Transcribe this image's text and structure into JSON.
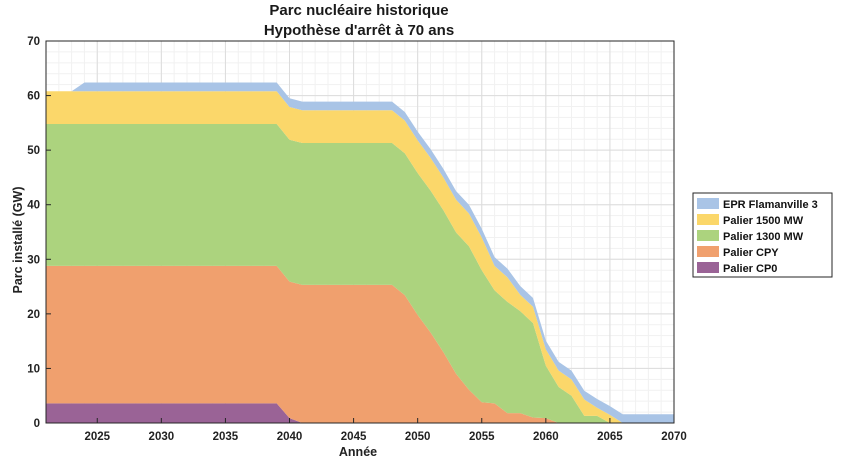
{
  "chart_data": {
    "type": "area",
    "stacked": true,
    "title": [
      "Parc nucléaire historique",
      "Hypothèse d'arrêt à 70 ans"
    ],
    "xlabel": "Année",
    "ylabel": "Parc installé (GW)",
    "xlim": [
      2021,
      2070
    ],
    "ylim": [
      0,
      70
    ],
    "xticks": [
      2025,
      2030,
      2035,
      2040,
      2045,
      2050,
      2055,
      2060,
      2065,
      2070
    ],
    "yticks": [
      0,
      10,
      20,
      30,
      40,
      50,
      60,
      70
    ],
    "grid": true,
    "minor_grid": true,
    "legend_position": "right",
    "legend_order": [
      "EPR Flamanville 3",
      "Palier 1500 MW",
      "Palier 1300 MW",
      "Palier CPY",
      "Palier CP0"
    ],
    "x": [
      2021,
      2022,
      2023,
      2024,
      2025,
      2026,
      2027,
      2028,
      2029,
      2030,
      2031,
      2032,
      2033,
      2034,
      2035,
      2036,
      2037,
      2038,
      2039,
      2040,
      2041,
      2042,
      2043,
      2044,
      2045,
      2046,
      2047,
      2048,
      2049,
      2050,
      2051,
      2052,
      2053,
      2054,
      2055,
      2056,
      2057,
      2058,
      2059,
      2060,
      2061,
      2062,
      2063,
      2064,
      2065,
      2066,
      2067,
      2068,
      2069,
      2070
    ],
    "series": [
      {
        "name": "Palier CP0",
        "color": "#9a6396",
        "values": [
          3.6,
          3.6,
          3.6,
          3.6,
          3.6,
          3.6,
          3.6,
          3.6,
          3.6,
          3.6,
          3.6,
          3.6,
          3.6,
          3.6,
          3.6,
          3.6,
          3.6,
          3.6,
          3.6,
          0.9,
          0,
          0,
          0,
          0,
          0,
          0,
          0,
          0,
          0,
          0,
          0,
          0,
          0,
          0,
          0,
          0,
          0,
          0,
          0,
          0,
          0,
          0,
          0,
          0,
          0,
          0,
          0,
          0,
          0,
          0
        ]
      },
      {
        "name": "Palier CPY",
        "color": "#f0a06e",
        "values": [
          25.2,
          25.2,
          25.2,
          25.2,
          25.2,
          25.2,
          25.2,
          25.2,
          25.2,
          25.2,
          25.2,
          25.2,
          25.2,
          25.2,
          25.2,
          25.2,
          25.2,
          25.2,
          25.2,
          25.0,
          25.3,
          25.3,
          25.3,
          25.3,
          25.3,
          25.3,
          25.3,
          25.3,
          23.4,
          19.8,
          16.6,
          13.0,
          9.0,
          6.1,
          3.8,
          3.6,
          1.8,
          1.8,
          1.0,
          0.9,
          0,
          0,
          0,
          0,
          0,
          0,
          0,
          0,
          0,
          0
        ]
      },
      {
        "name": "Palier 1300 MW",
        "color": "#acd37e",
        "values": [
          26.0,
          26.0,
          26.0,
          26.0,
          26.0,
          26.0,
          26.0,
          26.0,
          26.0,
          26.0,
          26.0,
          26.0,
          26.0,
          26.0,
          26.0,
          26.0,
          26.0,
          26.0,
          26.0,
          26.0,
          26.0,
          26.0,
          26.0,
          26.0,
          26.0,
          26.0,
          26.0,
          26.0,
          26.0,
          26.0,
          26.0,
          26.0,
          25.9,
          26.3,
          24.2,
          20.7,
          20.4,
          18.7,
          17.3,
          9.6,
          6.6,
          5.0,
          1.3,
          1.3,
          0,
          0,
          0,
          0,
          0,
          0
        ]
      },
      {
        "name": "Palier 1500 MW",
        "color": "#fbd76a",
        "values": [
          6.0,
          6.0,
          6.0,
          6.0,
          6.0,
          6.0,
          6.0,
          6.0,
          6.0,
          6.0,
          6.0,
          6.0,
          6.0,
          6.0,
          6.0,
          6.0,
          6.0,
          6.0,
          6.0,
          6.0,
          6.0,
          6.0,
          6.0,
          6.0,
          6.0,
          6.0,
          6.0,
          6.0,
          6.0,
          6.0,
          6.0,
          6.0,
          6.0,
          6.0,
          6.0,
          4.5,
          4.5,
          3.0,
          3.0,
          3.0,
          3.0,
          3.0,
          3.0,
          1.5,
          1.5,
          0,
          0,
          0,
          0,
          0
        ]
      },
      {
        "name": "EPR Flamanville 3",
        "color": "#a9c4e6",
        "values": [
          0,
          0,
          0,
          1.6,
          1.6,
          1.6,
          1.6,
          1.6,
          1.6,
          1.6,
          1.6,
          1.6,
          1.6,
          1.6,
          1.6,
          1.6,
          1.6,
          1.6,
          1.6,
          1.6,
          1.6,
          1.6,
          1.6,
          1.6,
          1.6,
          1.6,
          1.6,
          1.6,
          1.6,
          1.6,
          1.6,
          1.6,
          1.6,
          1.6,
          1.6,
          1.6,
          1.6,
          1.6,
          1.6,
          1.6,
          1.6,
          1.6,
          1.6,
          1.6,
          1.6,
          1.6,
          1.6,
          1.6,
          1.6,
          1.6
        ]
      }
    ]
  }
}
